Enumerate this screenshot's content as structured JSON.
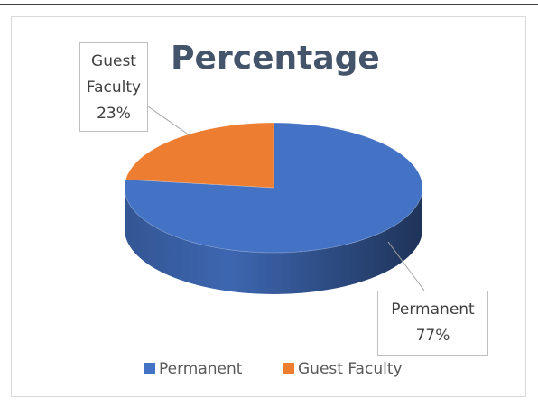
{
  "chart_data": {
    "type": "pie",
    "title": "Percentage",
    "categories": [
      "Permanent",
      "Guest Faculty"
    ],
    "values": [
      77,
      23
    ],
    "value_labels": [
      "77%",
      "23%"
    ],
    "colors": [
      "#4472c4",
      "#ed7d31"
    ],
    "legend": "bottom"
  }
}
